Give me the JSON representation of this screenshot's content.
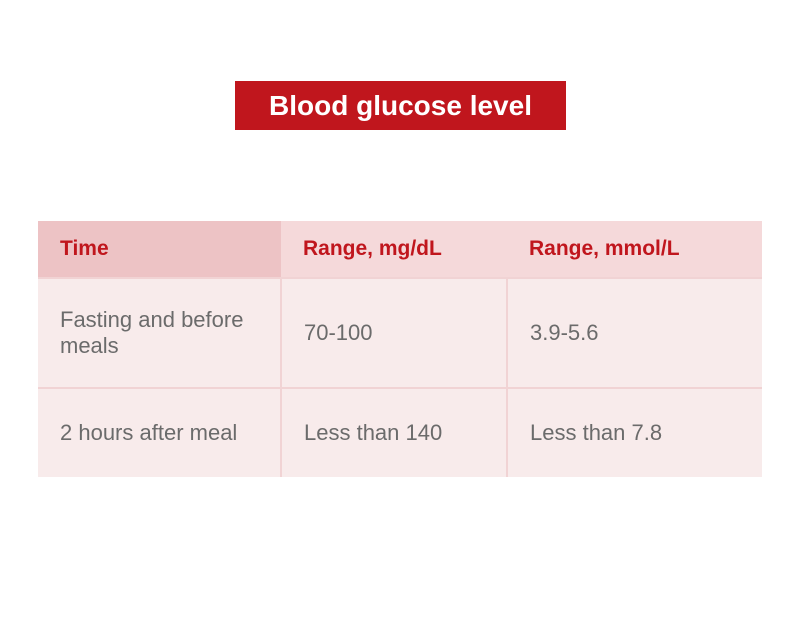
{
  "header": {
    "title": "Blood glucose level"
  },
  "table": {
    "columns": [
      "Time",
      "Range, mg/dL",
      "Range, mmol/L"
    ],
    "rows": [
      [
        "Fasting and before meals",
        "70-100",
        "3.9-5.6"
      ],
      [
        "2 hours after meal",
        "Less than 140",
        "Less than 7.8"
      ]
    ]
  }
}
